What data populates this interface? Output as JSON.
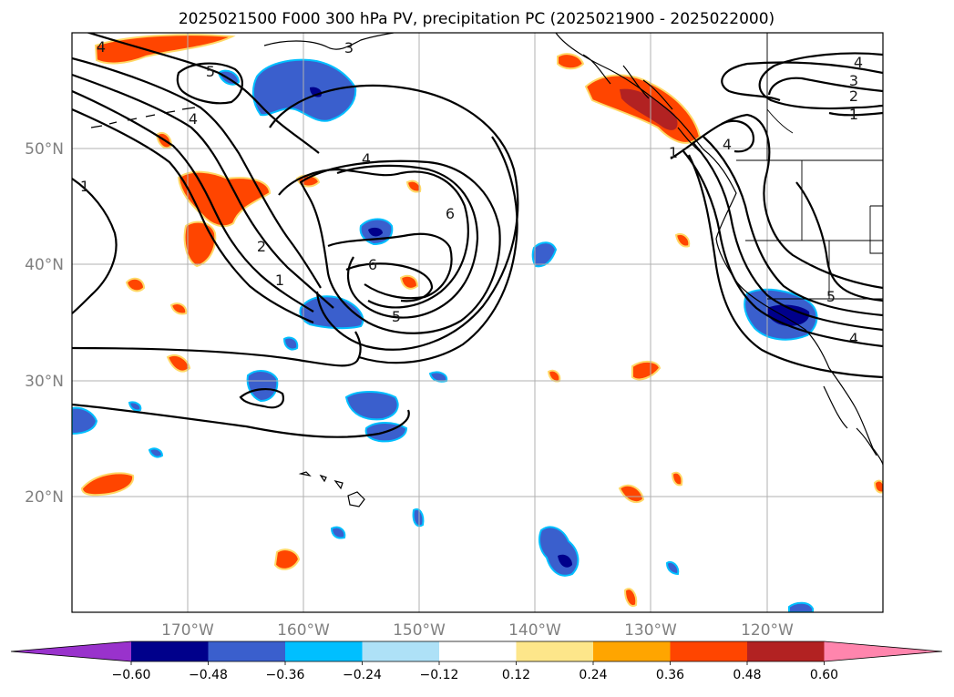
{
  "title": "2025021500 F000 300 hPa PV, precipitation PC (2025021900 - 2025022000)",
  "map": {
    "projection": "PlateCarree",
    "lon_range": [
      -180,
      -110
    ],
    "lat_range": [
      10,
      60
    ],
    "gridlines": true,
    "lat_ticks": [
      {
        "value": 50,
        "label": "50°N"
      },
      {
        "value": 40,
        "label": "40°N"
      },
      {
        "value": 30,
        "label": "30°N"
      },
      {
        "value": 20,
        "label": "20°N"
      }
    ],
    "lon_ticks": [
      {
        "value": -170,
        "label": "170°W"
      },
      {
        "value": -160,
        "label": "160°W"
      },
      {
        "value": -150,
        "label": "150°W"
      },
      {
        "value": -140,
        "label": "140°W"
      },
      {
        "value": -130,
        "label": "130°W"
      },
      {
        "value": -120,
        "label": "120°W"
      }
    ]
  },
  "pv_contour_labels": [
    {
      "text": "4",
      "lon": -177.5,
      "lat": 59.0
    },
    {
      "text": "3",
      "lon": -159.2,
      "lat": 58.8
    },
    {
      "text": "5",
      "lon": -168.0,
      "lat": 56.7
    },
    {
      "text": "4",
      "lon": -169.5,
      "lat": 52.4
    },
    {
      "text": "1",
      "lon": -179.0,
      "lat": 47.4
    },
    {
      "text": "4",
      "lon": -155.5,
      "lat": 48.9
    },
    {
      "text": "6",
      "lon": -147.5,
      "lat": 43.4
    },
    {
      "text": "2",
      "lon": -166.5,
      "lat": 41.4
    },
    {
      "text": "1",
      "lon": -164.1,
      "lat": 38.4
    },
    {
      "text": "6",
      "lon": -153.6,
      "lat": 39.9
    },
    {
      "text": "5",
      "lon": -150.2,
      "lat": 35.4
    },
    {
      "text": "4",
      "lon": -111.8,
      "lat": 57.9
    },
    {
      "text": "3",
      "lon": -112.3,
      "lat": 56.4
    },
    {
      "text": "2",
      "lon": -112.3,
      "lat": 55.0
    },
    {
      "text": "1",
      "lon": -112.8,
      "lat": 53.3
    },
    {
      "text": "4",
      "lon": -127.0,
      "lat": 50.1
    },
    {
      "text": "1",
      "lon": -128.0,
      "lat": 49.4
    },
    {
      "text": "5",
      "lon": -114.5,
      "lat": 37.3
    },
    {
      "text": "4",
      "lon": -112.5,
      "lat": 34.5
    }
  ],
  "colorbar": {
    "extend": "both",
    "boundaries": [
      -0.6,
      -0.48,
      -0.36,
      -0.24,
      -0.12,
      0.12,
      0.24,
      0.36,
      0.48,
      0.6
    ],
    "tick_labels": [
      "−0.60",
      "−0.48",
      "−0.36",
      "−0.24",
      "−0.12",
      "0.12",
      "0.24",
      "0.36",
      "0.48",
      "0.60"
    ],
    "colors": [
      "#9932cc",
      "#00008b",
      "#3a5fcd",
      "#00bfff",
      "#aee1f7",
      "#ffffff",
      "#fde68a",
      "#ffa500",
      "#ff4500",
      "#b22222",
      "#ff85ad"
    ]
  }
}
